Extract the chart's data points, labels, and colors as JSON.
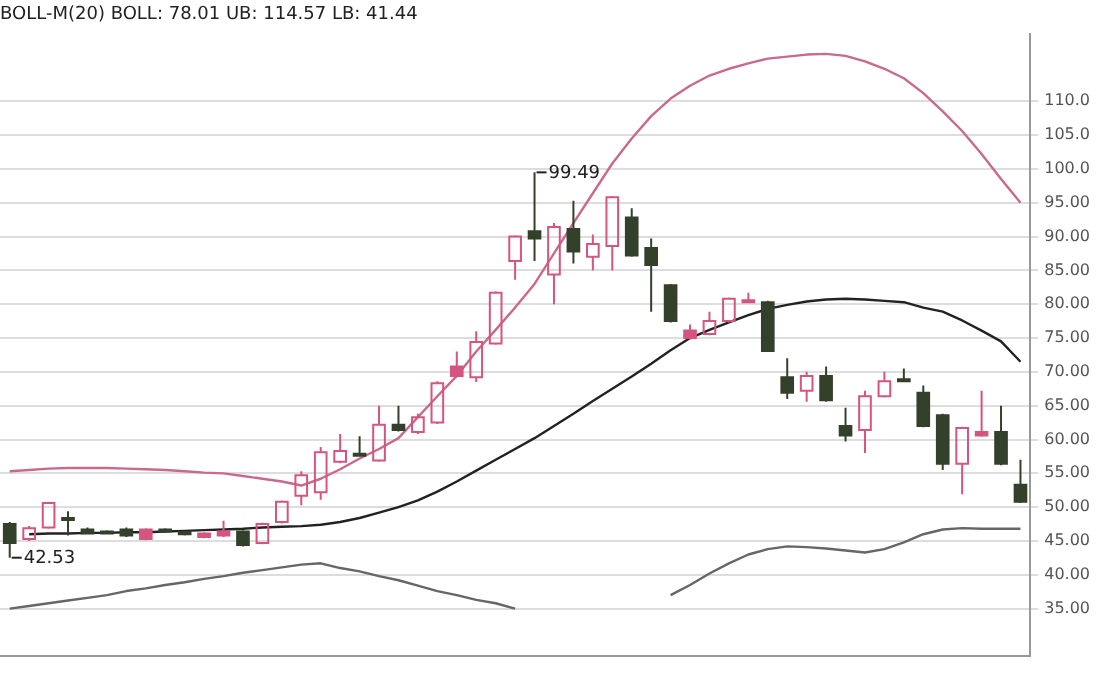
{
  "chart_data": {
    "type": "candlestick",
    "title": "BOLL-M(20) BOLL: 78.01 UB: 114.57 LB: 41.44",
    "categories": [
      null,
      null,
      null,
      null,
      null,
      null,
      null,
      null,
      null,
      null,
      null,
      null,
      null,
      null,
      null,
      null,
      null,
      null,
      null,
      null,
      null,
      null,
      null,
      null,
      null,
      null,
      null,
      null,
      null,
      null,
      null,
      null,
      null,
      null,
      null,
      null,
      null,
      null,
      null,
      null,
      null,
      null,
      null,
      null,
      null,
      null,
      null,
      null,
      null,
      null,
      null,
      null,
      null
    ],
    "ohlc": [
      [
        47.5,
        47.8,
        42.53,
        44.7
      ],
      [
        45.3,
        47.2,
        45.0,
        46.9
      ],
      [
        47.0,
        50.8,
        46.8,
        50.6
      ],
      [
        48.4,
        49.4,
        45.8,
        48.3
      ],
      [
        46.7,
        47.0,
        46.0,
        46.1
      ],
      [
        46.4,
        46.6,
        46.1,
        46.3
      ],
      [
        46.7,
        47.0,
        45.6,
        45.8
      ],
      [
        45.3,
        46.9,
        45.1,
        46.7
      ],
      [
        46.7,
        46.9,
        46.5,
        46.6
      ],
      [
        46.3,
        46.5,
        45.8,
        46.0
      ],
      [
        45.6,
        46.3,
        45.4,
        46.1
      ],
      [
        45.8,
        48.0,
        45.6,
        46.4
      ],
      [
        46.4,
        46.6,
        44.2,
        44.4
      ],
      [
        44.7,
        47.7,
        44.5,
        47.5
      ],
      [
        47.8,
        51.0,
        47.6,
        50.8
      ],
      [
        51.7,
        55.3,
        50.3,
        54.7
      ],
      [
        52.2,
        58.9,
        51.1,
        58.1
      ],
      [
        56.7,
        60.8,
        56.5,
        58.3
      ],
      [
        57.9,
        60.5,
        57.5,
        57.8
      ],
      [
        56.9,
        65.0,
        56.7,
        62.2
      ],
      [
        62.2,
        65.0,
        61.2,
        61.4
      ],
      [
        61.1,
        63.8,
        60.8,
        63.3
      ],
      [
        62.5,
        68.6,
        62.3,
        68.3
      ],
      [
        69.4,
        73.0,
        69.2,
        70.8
      ],
      [
        69.2,
        76.0,
        68.5,
        74.4
      ],
      [
        74.2,
        81.9,
        74.0,
        81.7
      ],
      [
        86.4,
        90.2,
        83.6,
        90.0
      ],
      [
        90.8,
        99.49,
        86.4,
        89.7
      ],
      [
        84.4,
        92.0,
        80.0,
        91.4
      ],
      [
        91.1,
        95.3,
        86.0,
        87.8
      ],
      [
        87.0,
        90.3,
        85.0,
        88.9
      ],
      [
        88.6,
        96.0,
        85.0,
        95.8
      ],
      [
        92.8,
        94.2,
        87.0,
        87.2
      ],
      [
        88.3,
        89.7,
        78.9,
        85.8
      ],
      [
        82.8,
        83.0,
        77.3,
        77.5
      ],
      [
        75.0,
        77.0,
        74.8,
        76.1
      ],
      [
        75.6,
        78.9,
        75.4,
        77.5
      ],
      [
        77.5,
        81.0,
        77.3,
        80.8
      ],
      [
        80.5,
        81.7,
        80.3,
        80.6
      ],
      [
        80.3,
        80.5,
        73.0,
        73.1
      ],
      [
        69.2,
        72.0,
        66.0,
        66.9
      ],
      [
        67.2,
        70.0,
        65.6,
        69.4
      ],
      [
        69.4,
        70.8,
        65.6,
        65.8
      ],
      [
        62.0,
        64.7,
        59.7,
        60.6
      ],
      [
        61.4,
        67.2,
        58.0,
        66.4
      ],
      [
        66.4,
        70.0,
        66.2,
        68.6
      ],
      [
        68.9,
        70.5,
        68.6,
        68.8
      ],
      [
        66.9,
        68.0,
        61.8,
        62.0
      ],
      [
        63.6,
        63.8,
        55.5,
        56.4
      ],
      [
        56.4,
        61.9,
        51.9,
        61.7
      ],
      [
        60.6,
        67.2,
        60.4,
        61.1
      ],
      [
        61.1,
        65.0,
        56.2,
        56.4
      ],
      [
        53.3,
        57.0,
        50.6,
        50.8
      ]
    ],
    "colors": [
      "#33402a",
      "#d4557f",
      "#d4557f",
      "#33402a",
      "#33402a",
      "#33402a",
      "#33402a",
      "#d4557f",
      "#33402a",
      "#33402a",
      "#d4557f",
      "#d4557f",
      "#33402a",
      "#d4557f",
      "#d4557f",
      "#d4557f",
      "#d4557f",
      "#d4557f",
      "#33402a",
      "#d4557f",
      "#33402a",
      "#d4557f",
      "#d4557f",
      "#d4557f",
      "#d4557f",
      "#d4557f",
      "#d4557f",
      "#33402a",
      "#d4557f",
      "#33402a",
      "#d4557f",
      "#d4557f",
      "#33402a",
      "#33402a",
      "#33402a",
      "#d4557f",
      "#d4557f",
      "#d4557f",
      "#d4557f",
      "#33402a",
      "#33402a",
      "#d4557f",
      "#33402a",
      "#33402a",
      "#d4557f",
      "#d4557f",
      "#33402a",
      "#33402a",
      "#33402a",
      "#d4557f",
      "#d4557f",
      "#33402a",
      "#33402a"
    ],
    "series": [
      {
        "type": "line",
        "color": "#222222",
        "values": [
          null,
          46.0,
          46.1,
          46.1,
          46.2,
          46.2,
          46.3,
          46.3,
          46.4,
          46.5,
          46.6,
          46.7,
          46.8,
          47.0,
          47.1,
          47.2,
          47.4,
          47.8,
          48.4,
          49.2,
          50.0,
          51.0,
          52.3,
          53.8,
          55.4,
          57.0,
          58.6,
          60.2,
          62.0,
          63.8,
          65.7,
          67.5,
          69.3,
          71.2,
          73.2,
          75.0,
          76.2,
          77.3,
          78.4,
          79.3,
          79.9,
          80.4,
          80.7,
          80.8,
          80.7,
          80.5,
          80.3,
          79.5,
          78.9,
          77.6,
          76.1,
          74.5,
          71.5
        ]
      },
      {
        "type": "line",
        "color": "#c86a8e",
        "values": [
          55.3,
          55.5,
          55.7,
          55.8,
          55.8,
          55.8,
          55.7,
          55.6,
          55.5,
          55.3,
          55.1,
          55.0,
          54.6,
          54.2,
          53.8,
          53.2,
          54.2,
          55.6,
          57.2,
          58.6,
          60.2,
          63.3,
          66.4,
          69.4,
          73.0,
          76.2,
          79.5,
          83.0,
          87.5,
          92.0,
          96.4,
          100.8,
          104.5,
          107.8,
          110.4,
          112.3,
          113.8,
          114.8,
          115.6,
          116.3,
          116.6,
          116.9,
          117.0,
          116.7,
          115.9,
          114.8,
          113.4,
          111.2,
          108.5,
          105.6,
          102.2,
          98.5,
          95.0
        ]
      },
      {
        "type": "line",
        "color": "#666666",
        "values": [
          35.0,
          35.4,
          35.8,
          36.2,
          36.6,
          37.0,
          37.6,
          38.0,
          38.5,
          38.9,
          39.4,
          39.8,
          40.3,
          40.7,
          41.1,
          41.5,
          41.7,
          41.0,
          40.5,
          39.8,
          39.2,
          38.4,
          37.6,
          37.0,
          36.3,
          35.8,
          35.0,
          null,
          null,
          null,
          null,
          null,
          null,
          null,
          37.0,
          38.5,
          40.2,
          41.7,
          43.0,
          43.8,
          44.2,
          44.1,
          43.9,
          43.6,
          43.3,
          43.8,
          44.8,
          46.0,
          46.7,
          46.9,
          46.8,
          46.8,
          46.8
        ]
      }
    ],
    "ylim": [
      28,
      120
    ],
    "yticks": [
      {
        "value": 35,
        "label": "35.00"
      },
      {
        "value": 40,
        "label": "40.00"
      },
      {
        "value": 45,
        "label": "45.00"
      },
      {
        "value": 50,
        "label": "50.00"
      },
      {
        "value": 55,
        "label": "55.00"
      },
      {
        "value": 60,
        "label": "60.00"
      },
      {
        "value": 65,
        "label": "65.00"
      },
      {
        "value": 70,
        "label": "70.00"
      },
      {
        "value": 75,
        "label": "75.00"
      },
      {
        "value": 80,
        "label": "80.00"
      },
      {
        "value": 85,
        "label": "85.00"
      },
      {
        "value": 90,
        "label": "90.00"
      },
      {
        "value": 95,
        "label": "95.00"
      },
      {
        "value": 100,
        "label": "100.0"
      },
      {
        "value": 105,
        "label": "105.0"
      },
      {
        "value": 110,
        "label": "110.0"
      }
    ],
    "grid": "y",
    "tick_labels": "y",
    "marker": "none",
    "line_style": "solid",
    "legend": false,
    "annotations": [
      "42.53",
      "99.49"
    ]
  }
}
